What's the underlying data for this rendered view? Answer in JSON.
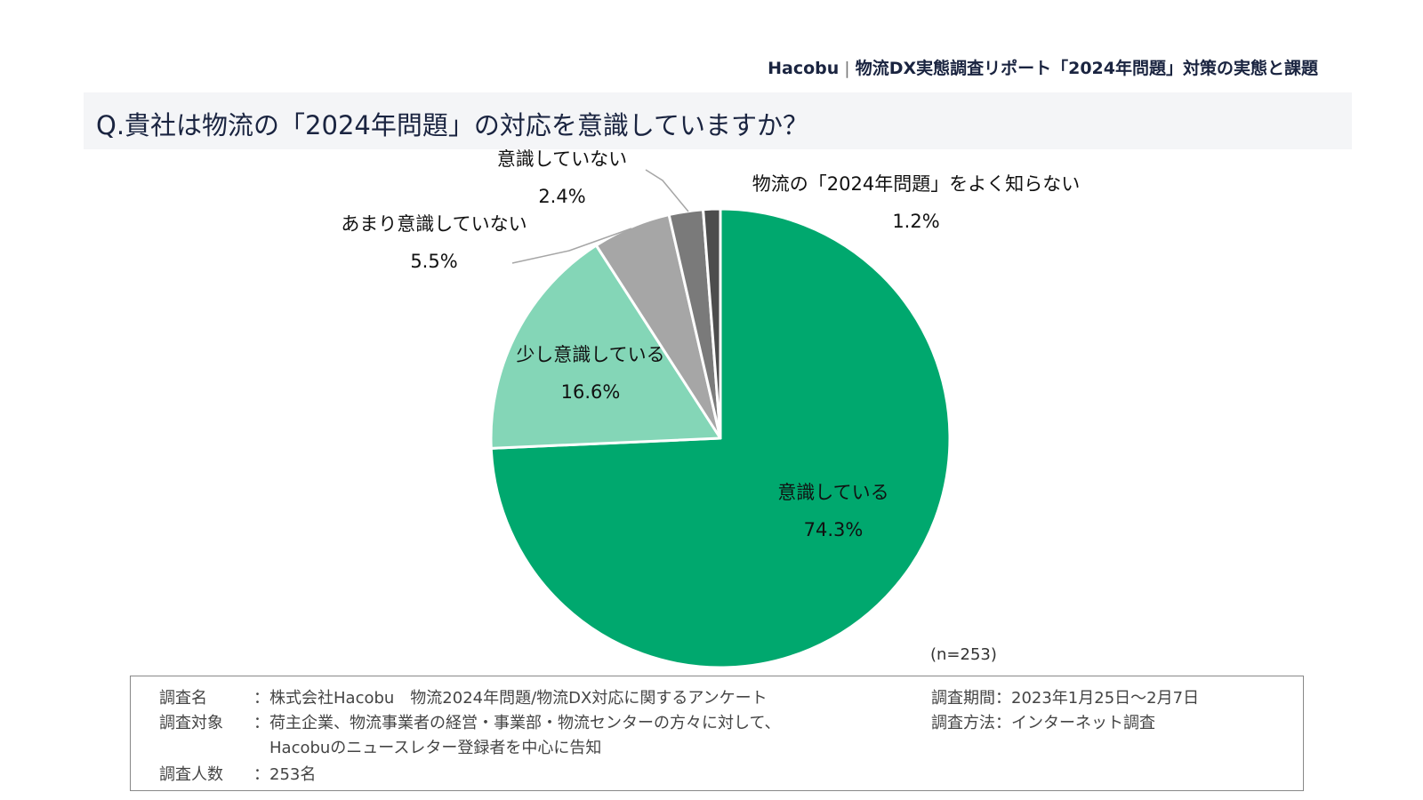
{
  "header": {
    "brand": "Hacobu",
    "report_title": "物流DX実態調査リポート「2024年問題」対策の実態と課題"
  },
  "question": "Q.貴社は物流の「2024年問題」の対応を意識していますか？",
  "chart_data": {
    "type": "pie",
    "start_angle_deg": 0,
    "direction": "clockwise",
    "slices": [
      {
        "label": "意識している",
        "value": 74.3,
        "value_text": "74.3%",
        "color": "#00a86e"
      },
      {
        "label": "少し意識している",
        "value": 16.6,
        "value_text": "16.6%",
        "color": "#84d6b7"
      },
      {
        "label": "あまり意識していない",
        "value": 5.5,
        "value_text": "5.5%",
        "color": "#a6a6a6"
      },
      {
        "label": "意識していない",
        "value": 2.4,
        "value_text": "2.4%",
        "color": "#7a7a7a"
      },
      {
        "label": "物流の「2024年問題」をよく知らない",
        "value": 1.2,
        "value_text": "1.2%",
        "color": "#4d4d4d"
      }
    ],
    "sample_size": "(n=253)",
    "legend": "none"
  },
  "footnote": {
    "left": [
      {
        "key": "調査名",
        "sep": "：",
        "value": "株式会社Hacobu　物流2024年問題/物流DX対応に関するアンケート"
      },
      {
        "key": "調査対象",
        "sep": "：",
        "value": "荷主企業、物流事業者の経営・事業部・物流センターの方々に対して、"
      },
      {
        "key": "",
        "sep": "",
        "value": "Hacobuのニュースレター登録者を中心に告知"
      },
      {
        "key": "調査人数",
        "sep": "：",
        "value": "253名"
      }
    ],
    "right": [
      {
        "key": "調査期間",
        "sep": "：",
        "value": "2023年1月25日〜2月7日"
      },
      {
        "key": "調査方法",
        "sep": "：",
        "value": "インターネット調査"
      }
    ]
  }
}
